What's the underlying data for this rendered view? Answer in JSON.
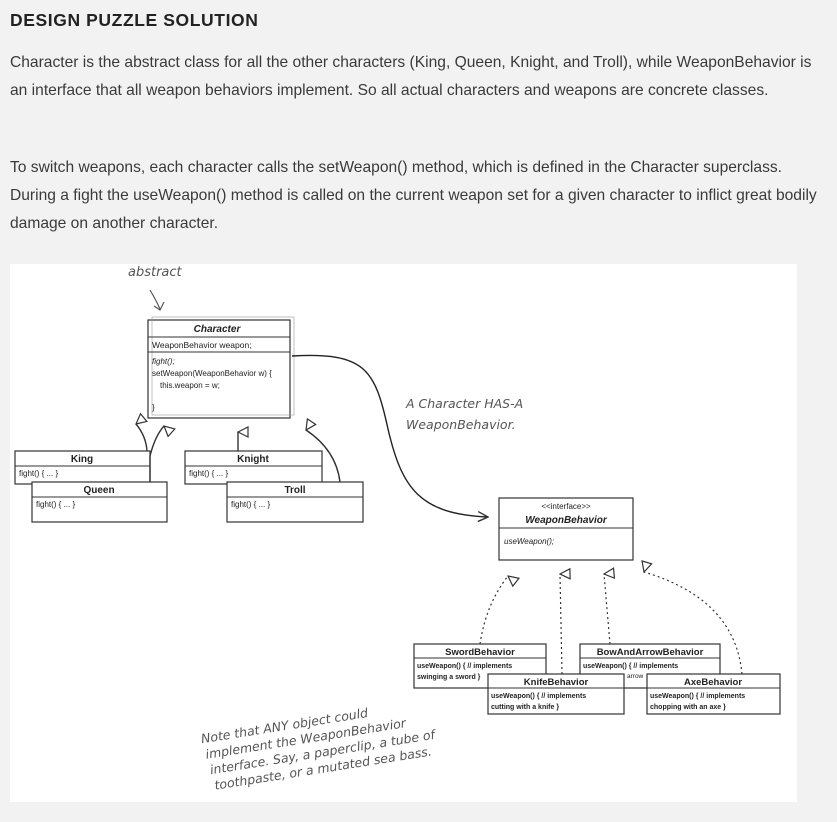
{
  "heading": "DESIGN PUZZLE SOLUTION",
  "paragraphs": [
    "Character is the abstract class for all the other characters (King, Queen, Knight, and Troll), while WeaponBehavior is an interface that all weapon behaviors implement. So all actual characters and weapons are concrete classes.",
    "To switch weapons, each character calls the setWeapon() method, which is defined in the Character superclass. During a fight the useWeapon() method is called on the current weapon set for a given character to inflict great bodily damage on another character."
  ],
  "diagram": {
    "note_abstract": "abstract",
    "note_has_a": [
      "A Character HAS-A",
      "WeaponBehavior."
    ],
    "note_any": [
      "Note that ANY object could",
      "implement the WeaponBehavior",
      "interface. Say, a paperclip, a tube of",
      "toothpaste, or a mutated sea bass."
    ],
    "character": {
      "name": "Character",
      "attribute": "WeaponBehavior weapon;",
      "methods": [
        "fight();",
        "setWeapon(WeaponBehavior w) {",
        "this.weapon = w;",
        "}"
      ]
    },
    "king": {
      "name": "King",
      "method": "fight() { ... }"
    },
    "queen": {
      "name": "Queen",
      "method": "fight() { ... }"
    },
    "knight": {
      "name": "Knight",
      "method": "fight() { ... }"
    },
    "troll": {
      "name": "Troll",
      "method": "fight() { ... }"
    },
    "weapon_behavior": {
      "stereotype": "<<interface>>",
      "name": "WeaponBehavior",
      "method": "useWeapon();"
    },
    "sword": {
      "name": "SwordBehavior",
      "lines": [
        "useWeapon() { // implements",
        "swinging a sword }"
      ]
    },
    "bow": {
      "name": "BowAndArrowBehavior",
      "lines": [
        "useWeapon() { // implements",
        "arrow"
      ]
    },
    "knife": {
      "name": "KnifeBehavior",
      "lines": [
        "useWeapon() { // implements",
        "cutting with a knife }"
      ]
    },
    "axe": {
      "name": "AxeBehavior",
      "lines": [
        "useWeapon() { // implements",
        "chopping with an axe }"
      ]
    }
  }
}
